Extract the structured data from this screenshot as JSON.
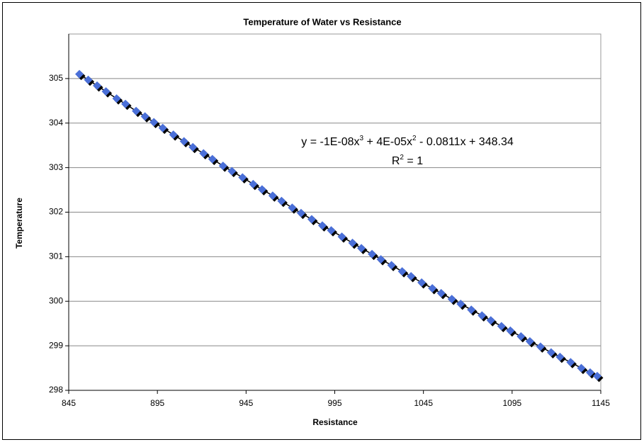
{
  "chart_data": {
    "type": "scatter",
    "title": "Temperature of Water vs Resistance",
    "x_label": "Resistance",
    "y_label": "Temperature",
    "annotations": [
      {
        "parts": [
          "y = -1E-08x",
          "3",
          " + 4E-05x",
          "2",
          " - 0.0811x + 348.34"
        ],
        "superscript": [
          false,
          true,
          false,
          true,
          false
        ]
      },
      {
        "parts": [
          "R",
          "2",
          " = 1"
        ],
        "superscript": [
          false,
          true,
          false
        ]
      }
    ],
    "xlim": [
      845,
      1145
    ],
    "xticks": [
      845,
      895,
      945,
      995,
      1045,
      1095,
      1145
    ],
    "ylim": [
      298,
      306
    ],
    "yticks": [
      298,
      299,
      300,
      301,
      302,
      303,
      304,
      305
    ],
    "grid": true,
    "trendline": true,
    "series": [
      {
        "color": "#4a6fd8",
        "x": [
          851,
          856,
          861,
          866,
          872,
          877,
          883,
          888,
          893,
          898,
          904,
          910,
          915,
          921,
          926,
          932,
          937,
          943,
          949,
          954,
          960,
          965,
          971,
          976,
          982,
          988,
          993,
          999,
          1005,
          1010,
          1016,
          1021,
          1027,
          1033,
          1038,
          1044,
          1050,
          1055,
          1061,
          1066,
          1072,
          1078,
          1083,
          1089,
          1094,
          1100,
          1105,
          1111,
          1117,
          1122,
          1128,
          1134,
          1139,
          1143
        ],
        "values": [
          305.1,
          304.97,
          304.84,
          304.71,
          304.55,
          304.43,
          304.27,
          304.15,
          304.02,
          303.89,
          303.74,
          303.59,
          303.46,
          303.32,
          303.19,
          303.04,
          302.92,
          302.78,
          302.63,
          302.51,
          302.37,
          302.25,
          302.1,
          301.98,
          301.84,
          301.7,
          301.59,
          301.45,
          301.31,
          301.19,
          301.06,
          300.94,
          300.81,
          300.67,
          300.56,
          300.42,
          300.29,
          300.18,
          300.05,
          299.94,
          299.81,
          299.68,
          299.57,
          299.44,
          299.34,
          299.21,
          299.1,
          298.98,
          298.85,
          298.75,
          298.63,
          298.5,
          298.4,
          298.32
        ]
      }
    ]
  }
}
